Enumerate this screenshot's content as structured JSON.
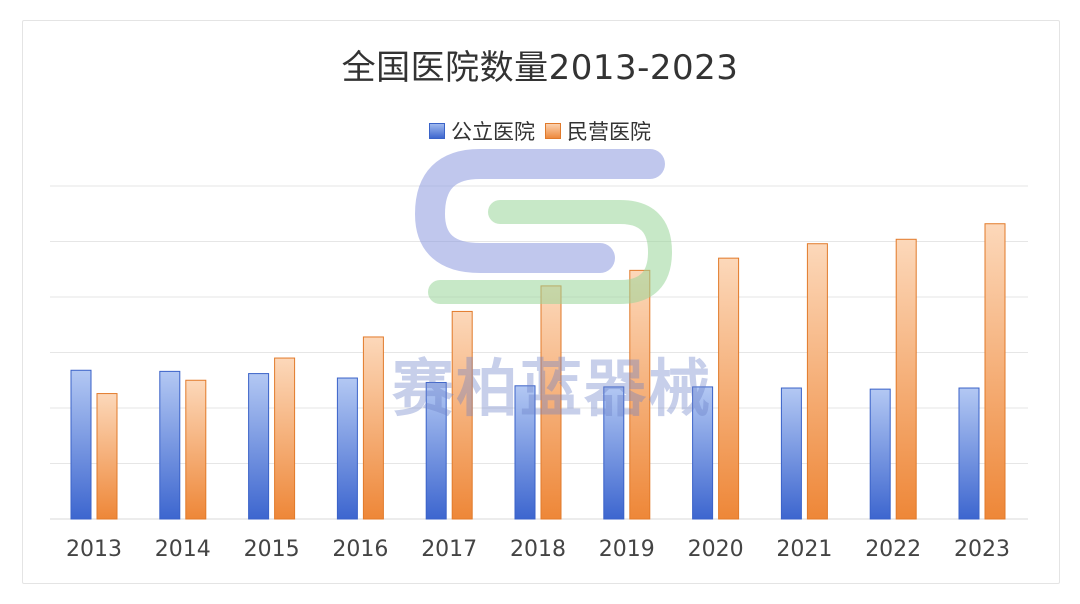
{
  "chart_data": {
    "type": "bar",
    "title": "全国医院数量2013-2023",
    "categories": [
      "2013",
      "2014",
      "2015",
      "2016",
      "2017",
      "2018",
      "2019",
      "2020",
      "2021",
      "2022",
      "2023"
    ],
    "series": [
      {
        "name": "公立医院",
        "color": "#3f68cf",
        "values": [
          13400,
          13300,
          13100,
          12700,
          12300,
          12000,
          11900,
          11900,
          11800,
          11700,
          11800
        ]
      },
      {
        "name": "民营医院",
        "color": "#ee8a3e",
        "values": [
          11300,
          12500,
          14500,
          16400,
          18700,
          21000,
          22400,
          23500,
          24800,
          25200,
          26600
        ]
      }
    ],
    "ylim": [
      0,
      30000
    ],
    "gridlines": true,
    "legend_position": "top-center",
    "xlabel": "",
    "ylabel": ""
  },
  "watermark": {
    "text": "赛柏蓝器械",
    "logo": "S-logo-icon"
  }
}
